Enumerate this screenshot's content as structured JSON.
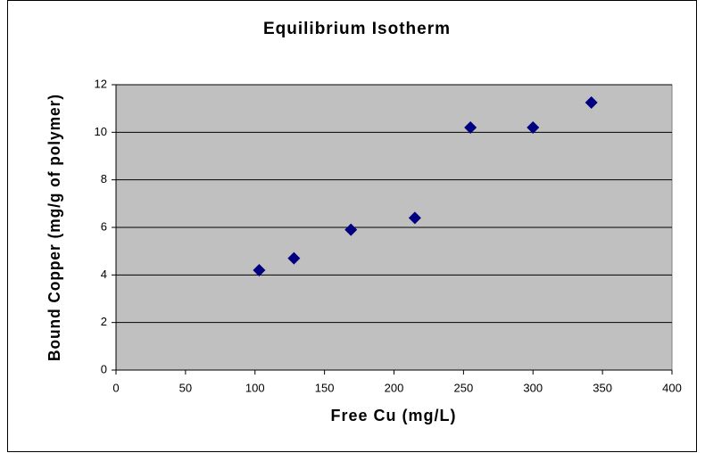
{
  "chart_data": {
    "type": "scatter",
    "title": "Equilibrium Isotherm",
    "xlabel": "Free Cu (mg/L)",
    "ylabel": "Bound Copper (mg/g of polymer)",
    "x": [
      103,
      128,
      169,
      215,
      255,
      300,
      342
    ],
    "values": [
      4.2,
      4.7,
      5.9,
      6.4,
      10.2,
      10.2,
      11.25
    ],
    "color": "#000080",
    "xlim": [
      0,
      400
    ],
    "xticks": [
      0,
      50,
      100,
      150,
      200,
      250,
      300,
      350,
      400
    ],
    "ylim": [
      0,
      12
    ],
    "yticks": [
      0,
      2,
      4,
      6,
      8,
      10,
      12
    ],
    "grid": true
  }
}
